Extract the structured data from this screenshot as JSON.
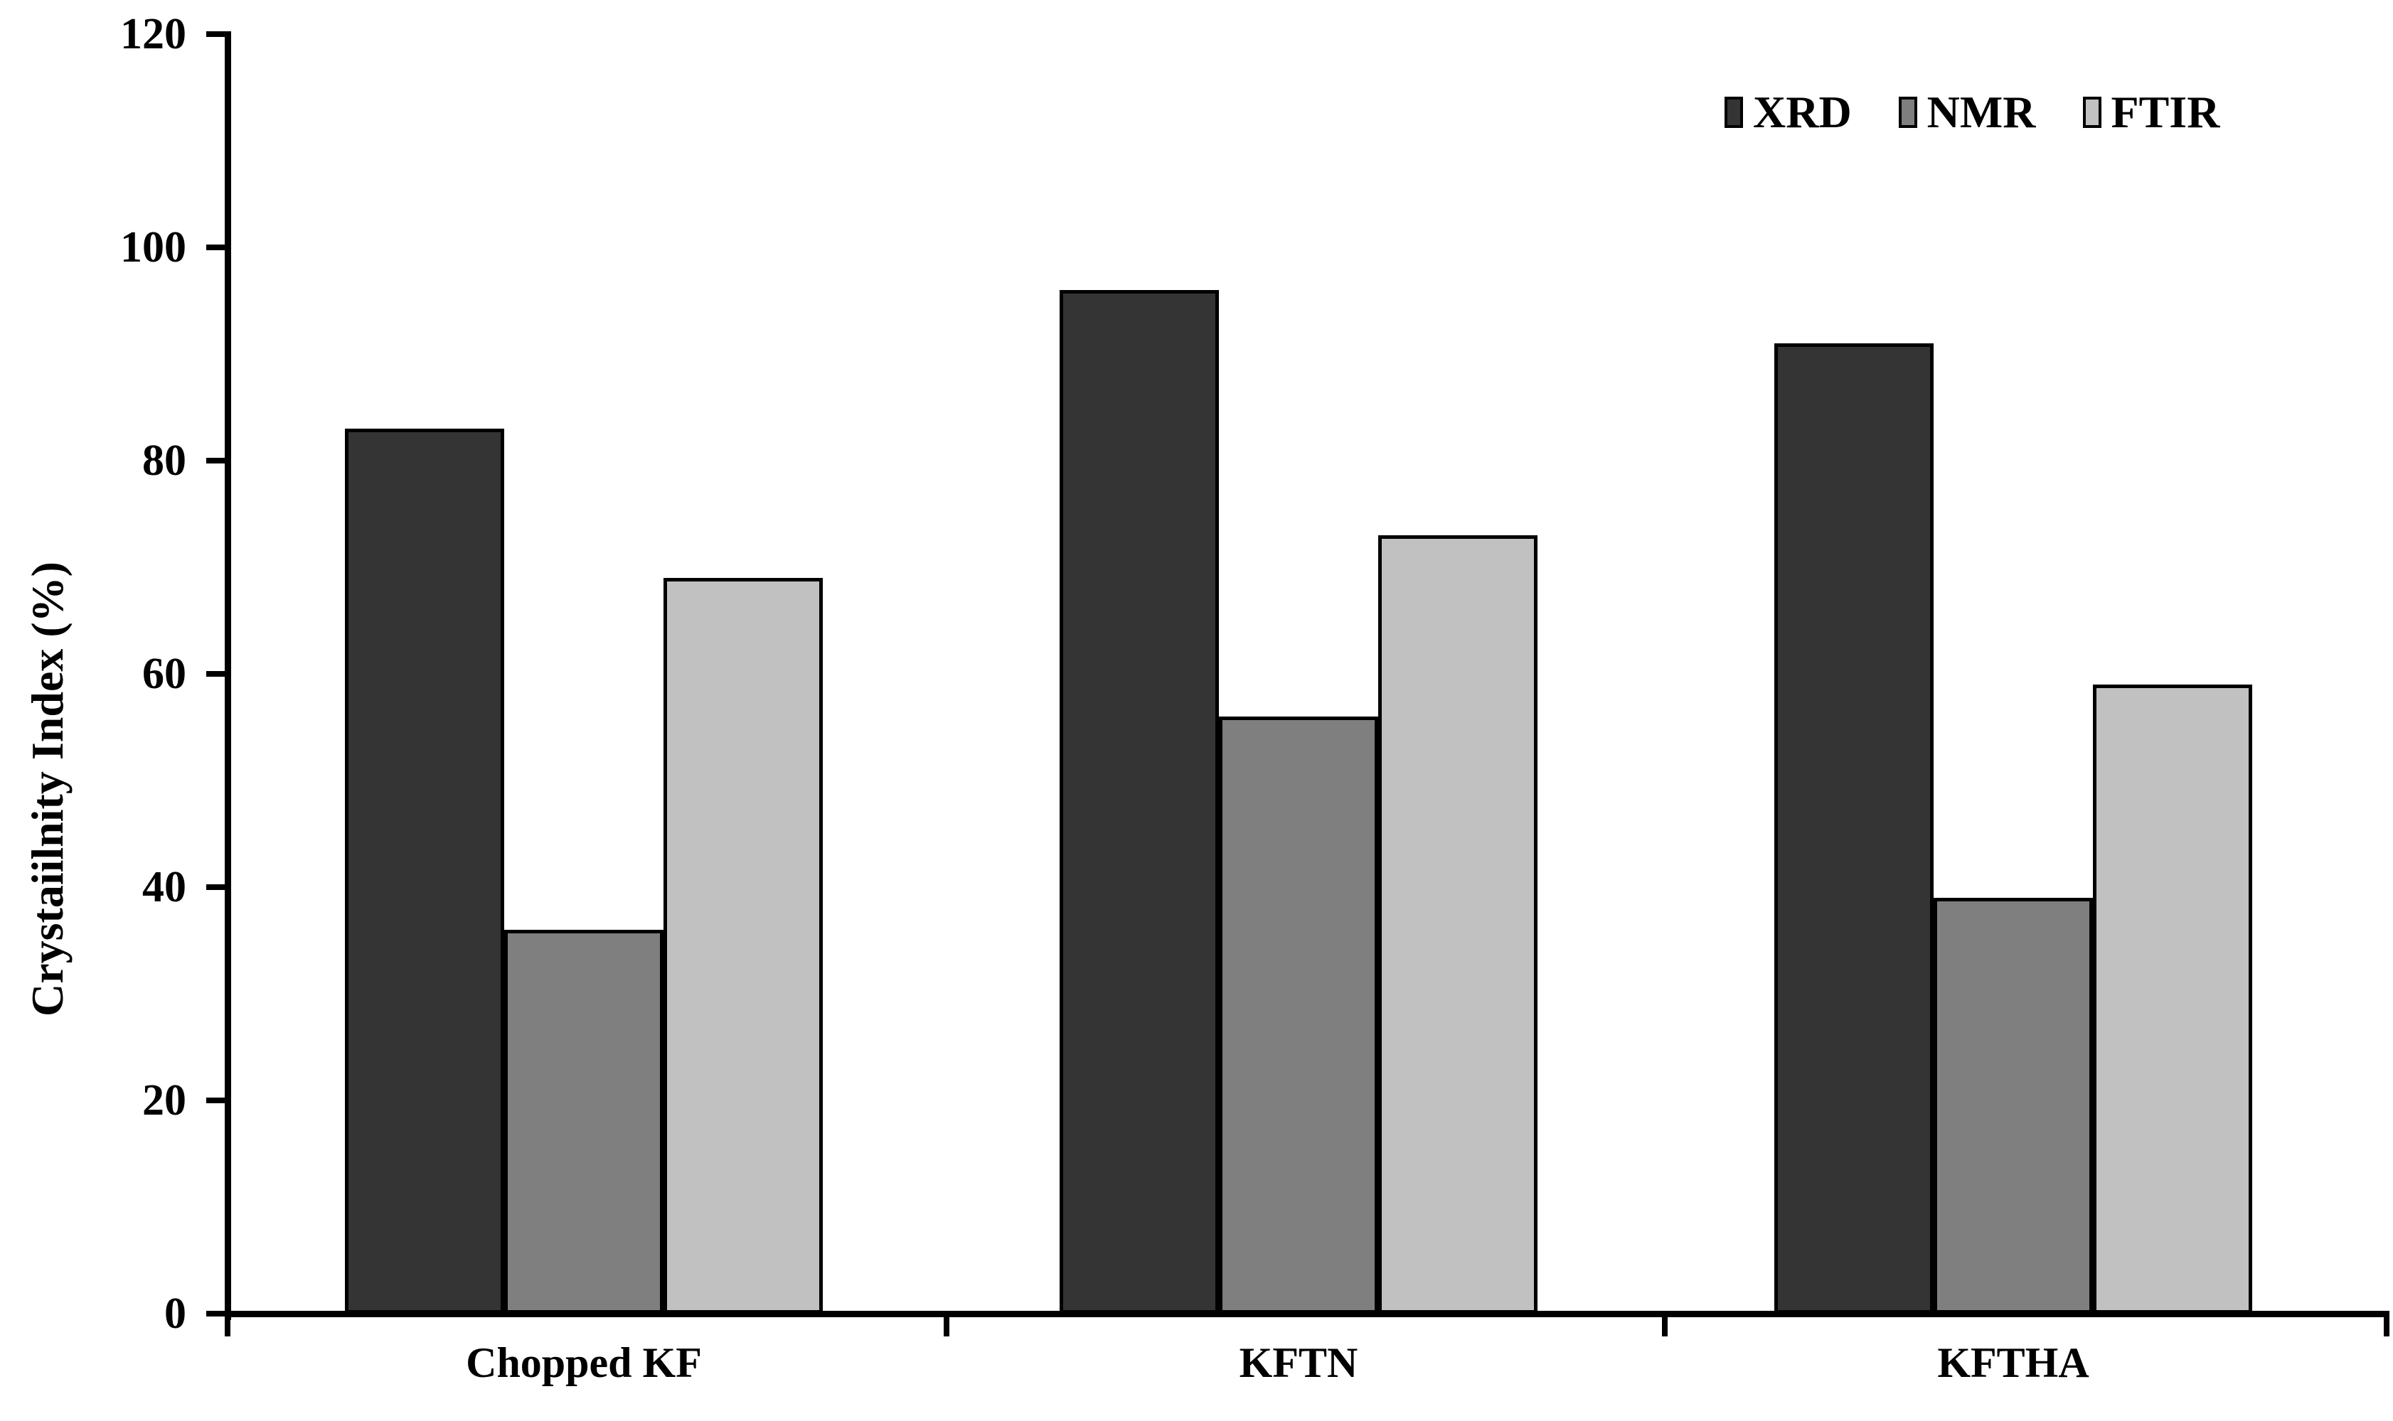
{
  "chart_data": {
    "type": "bar",
    "title": "",
    "xlabel": "",
    "ylabel": "Crystaiilnity Index (%)",
    "categories": [
      "Chopped KF",
      "KFTN",
      "KFTHA"
    ],
    "series": [
      {
        "name": "XRD",
        "color": "#343434",
        "values": [
          83,
          96,
          91
        ]
      },
      {
        "name": "NMR",
        "color": "#7f7f7f",
        "values": [
          36,
          56,
          39
        ]
      },
      {
        "name": "FTIR",
        "color": "#c1c1c1",
        "values": [
          69,
          73,
          59
        ]
      }
    ],
    "ylim": [
      0,
      120
    ],
    "yticks": [
      0,
      20,
      40,
      60,
      80,
      100,
      120
    ],
    "grid": false,
    "legend_position": "top-right",
    "bar_border_color": "#000000",
    "axis_color": "#000000",
    "background_color": "#ffffff"
  }
}
